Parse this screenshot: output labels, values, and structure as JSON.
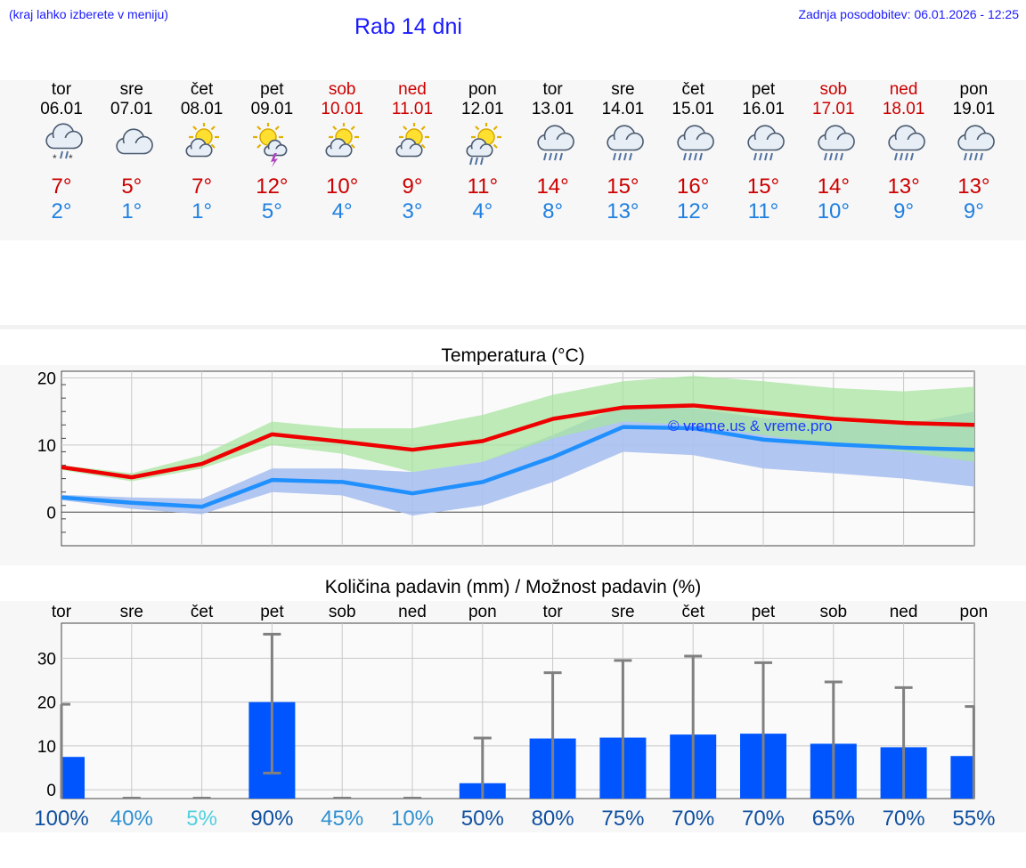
{
  "header": {
    "hint": "(kraj lahko izberete v meniju)",
    "title": "Rab 14 dni",
    "updated": "Zadnja posodobitev: 06.01.2026 - 12:25"
  },
  "forecast": {
    "days": [
      {
        "name": "tor",
        "date": "06.01",
        "weekend": false,
        "icon": "cloud-sleet-icon",
        "tmax": "7°",
        "tmin": "2°"
      },
      {
        "name": "sre",
        "date": "07.01",
        "weekend": false,
        "icon": "cloudy-icon",
        "tmax": "5°",
        "tmin": "1°"
      },
      {
        "name": "čet",
        "date": "08.01",
        "weekend": false,
        "icon": "sun-cloud-icon",
        "tmax": "7°",
        "tmin": "1°"
      },
      {
        "name": "pet",
        "date": "09.01",
        "weekend": false,
        "icon": "sun-thunder-icon",
        "tmax": "12°",
        "tmin": "5°"
      },
      {
        "name": "sob",
        "date": "10.01",
        "weekend": true,
        "icon": "sun-cloud-icon",
        "tmax": "10°",
        "tmin": "4°"
      },
      {
        "name": "ned",
        "date": "11.01",
        "weekend": true,
        "icon": "sun-cloud-icon",
        "tmax": "9°",
        "tmin": "3°"
      },
      {
        "name": "pon",
        "date": "12.01",
        "weekend": false,
        "icon": "sun-rain-icon",
        "tmax": "11°",
        "tmin": "4°"
      },
      {
        "name": "tor",
        "date": "13.01",
        "weekend": false,
        "icon": "cloud-rain-icon",
        "tmax": "14°",
        "tmin": "8°"
      },
      {
        "name": "sre",
        "date": "14.01",
        "weekend": false,
        "icon": "cloud-rain-icon",
        "tmax": "15°",
        "tmin": "13°"
      },
      {
        "name": "čet",
        "date": "15.01",
        "weekend": false,
        "icon": "cloud-rain-icon",
        "tmax": "16°",
        "tmin": "12°"
      },
      {
        "name": "pet",
        "date": "16.01",
        "weekend": false,
        "icon": "cloud-rain-icon",
        "tmax": "15°",
        "tmin": "11°"
      },
      {
        "name": "sob",
        "date": "17.01",
        "weekend": true,
        "icon": "cloud-rain-icon",
        "tmax": "14°",
        "tmin": "10°"
      },
      {
        "name": "ned",
        "date": "18.01",
        "weekend": true,
        "icon": "cloud-rain-icon",
        "tmax": "13°",
        "tmin": "9°"
      },
      {
        "name": "pon",
        "date": "19.01",
        "weekend": false,
        "icon": "cloud-rain-icon",
        "tmax": "13°",
        "tmin": "9°"
      }
    ]
  },
  "colors": {
    "max_line": "#ee0000",
    "min_line": "#2090ff",
    "max_band": "#a8e4a0",
    "min_band": "#a8c0f0",
    "overlap_band": "#70b8a0",
    "precip_bar": "#0055ff",
    "error_bar": "#808080"
  },
  "chart_data": [
    {
      "type": "line",
      "title": "Temperatura (°C)",
      "watermark": "© vreme.us & vreme.pro",
      "xlabel": "",
      "ylabel": "",
      "ylim": [
        -5,
        21
      ],
      "yticks": [
        0,
        10,
        20
      ],
      "x": [
        0,
        1,
        2,
        3,
        4,
        5,
        6,
        7,
        8,
        9,
        10,
        11,
        12,
        13
      ],
      "series": [
        {
          "name": "max",
          "values": [
            6.7,
            5.2,
            7.2,
            11.6,
            10.5,
            9.3,
            10.6,
            13.9,
            15.6,
            15.9,
            14.9,
            13.9,
            13.3,
            13.0
          ],
          "band_low": [
            6.3,
            4.6,
            6.5,
            10.0,
            8.7,
            6.0,
            7.5,
            11.0,
            13.5,
            13.0,
            11.5,
            10.0,
            9.0,
            7.5
          ],
          "band_high": [
            7.0,
            5.8,
            8.5,
            13.5,
            12.5,
            12.5,
            14.5,
            17.5,
            19.5,
            20.3,
            19.5,
            18.5,
            18.0,
            18.7
          ]
        },
        {
          "name": "min",
          "values": [
            2.2,
            1.4,
            0.8,
            4.8,
            4.5,
            2.8,
            4.5,
            8.2,
            12.7,
            12.5,
            10.8,
            10.1,
            9.6,
            9.3
          ],
          "band_low": [
            1.8,
            0.5,
            -0.3,
            3.0,
            2.5,
            -0.5,
            1.0,
            4.5,
            9.0,
            8.5,
            6.5,
            5.8,
            5.0,
            3.8
          ],
          "band_high": [
            2.6,
            2.2,
            2.0,
            6.5,
            6.5,
            6.0,
            7.5,
            11.5,
            16.0,
            15.5,
            14.0,
            13.5,
            13.0,
            15.0
          ]
        }
      ]
    },
    {
      "type": "bar",
      "title": "Količina padavin (mm) / Možnost padavin (%)",
      "xlabel": "",
      "ylabel": "",
      "ylim": [
        -2,
        38
      ],
      "yticks": [
        0,
        10,
        20,
        30
      ],
      "categories": [
        "tor",
        "sre",
        "čet",
        "pet",
        "sob",
        "ned",
        "pon",
        "tor",
        "sre",
        "čet",
        "pet",
        "sob",
        "ned",
        "pon"
      ],
      "values": [
        7.5,
        0,
        0,
        20.0,
        0,
        0,
        1.5,
        11.7,
        11.9,
        12.6,
        12.8,
        10.5,
        9.7,
        7.7
      ],
      "err_low": [
        0,
        0,
        0,
        3.8,
        0,
        0,
        0,
        0,
        0,
        0,
        0,
        0,
        0,
        0
      ],
      "err_high": [
        19.5,
        0,
        0,
        35.5,
        0,
        0,
        11.8,
        26.7,
        29.5,
        30.5,
        29.0,
        24.6,
        23.3,
        19.0
      ],
      "probability": [
        "100%",
        "40%",
        "5%",
        "90%",
        "45%",
        "10%",
        "50%",
        "80%",
        "75%",
        "70%",
        "70%",
        "65%",
        "70%",
        "55%"
      ]
    }
  ]
}
